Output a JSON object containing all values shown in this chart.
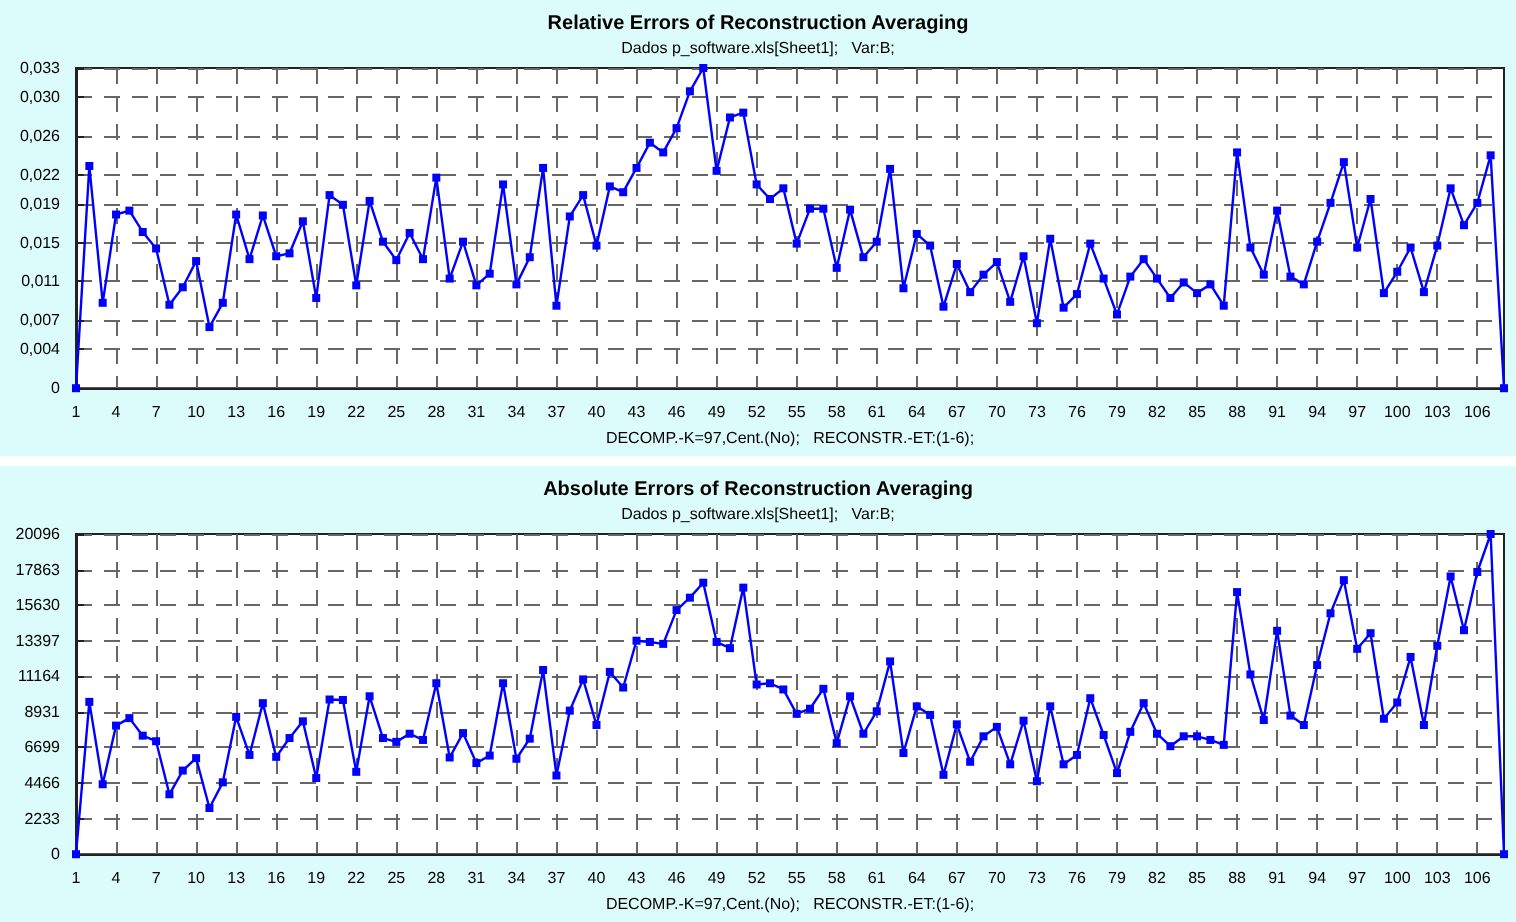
{
  "chart_data": [
    {
      "type": "line",
      "title": "Relative Errors of Reconstruction Averaging",
      "subtitle": "Dados p_software.xls[Sheet1];   Var:B;",
      "xlabel": "DECOMP.-K=97,Cent.(No);   RECONSTR.-ET:(1-6);",
      "categories": [
        "1",
        null,
        null,
        "4",
        null,
        null,
        "7",
        null,
        null,
        "10",
        null,
        null,
        "13",
        null,
        null,
        "16",
        null,
        null,
        "19",
        null,
        null,
        "22",
        null,
        null,
        "25",
        null,
        null,
        "28",
        null,
        null,
        "31",
        null,
        null,
        "34",
        null,
        null,
        "37",
        null,
        null,
        "40",
        null,
        null,
        "43",
        null,
        null,
        "46",
        null,
        null,
        "49",
        null,
        null,
        "52",
        null,
        null,
        "55",
        null,
        null,
        "58",
        null,
        null,
        "61",
        null,
        null,
        "64",
        null,
        null,
        "67",
        null,
        null,
        "70",
        null,
        null,
        "73",
        null,
        null,
        "76",
        null,
        null,
        "79",
        null,
        null,
        "82",
        null,
        null,
        "85",
        null,
        null,
        "88",
        null,
        null,
        "91",
        null,
        null,
        "94",
        null,
        null,
        "97",
        null,
        null,
        "100",
        null,
        null,
        "103",
        null,
        null,
        "106",
        null,
        null
      ],
      "series": [
        {
          "color": "#0000ff",
          "values": [
            0,
            0.0229,
            0.0088,
            0.0179,
            0.0183,
            0.0161,
            0.0144,
            0.0086,
            0.0104,
            0.0131,
            0.0063,
            0.0088,
            0.0179,
            0.0133,
            0.0178,
            0.0136,
            0.0139,
            0.0172,
            0.0093,
            0.0199,
            0.0189,
            0.0106,
            0.0193,
            0.0151,
            0.0132,
            0.016,
            0.0133,
            0.0217,
            0.0113,
            0.0151,
            0.0106,
            0.0118,
            0.021,
            0.0107,
            0.0135,
            0.0227,
            0.0085,
            0.0177,
            0.0199,
            0.0147,
            0.0208,
            0.0202,
            0.0227,
            0.0253,
            0.0243,
            0.0268,
            0.0306,
            0.033,
            0.0224,
            0.0279,
            0.0284,
            0.021,
            0.0195,
            0.0206,
            0.0149,
            0.0185,
            0.0185,
            0.0124,
            0.0184,
            0.0135,
            0.0151,
            0.0226,
            0.0103,
            0.0159,
            0.0147,
            0.0084,
            0.0128,
            0.0099,
            0.0117,
            0.013,
            0.0089,
            0.0136,
            0.0067,
            0.0154,
            0.0083,
            0.0097,
            0.0149,
            0.0113,
            0.0076,
            0.0115,
            0.0133,
            0.0113,
            0.0093,
            0.0109,
            0.0098,
            0.0107,
            0.0085,
            0.0243,
            0.0145,
            0.0117,
            0.0183,
            0.0115,
            0.0107,
            0.0151,
            0.0191,
            0.0233,
            0.0145,
            0.0195,
            0.0098,
            0.012,
            0.0145,
            0.0099,
            0.0147,
            0.0206,
            0.0168,
            0.0191,
            0.024,
            0
          ]
        }
      ],
      "ylim": [
        0,
        0.033
      ],
      "yticks": [
        0,
        {
          "value": 0.004,
          "label": "0,004"
        },
        {
          "value": 0.007,
          "label": "0,007"
        },
        {
          "value": 0.011,
          "label": "0,011"
        },
        {
          "value": 0.015,
          "label": "0,015"
        },
        {
          "value": 0.019,
          "label": "0,019"
        },
        {
          "value": 0.022,
          "label": "0,022"
        },
        {
          "value": 0.026,
          "label": "0,026"
        },
        {
          "value": 0.03,
          "label": "0,030"
        },
        {
          "value": 0.033,
          "label": "0,033"
        }
      ],
      "grid": true,
      "marker": "square",
      "line_style": "solid"
    },
    {
      "type": "line",
      "title": "Absolute Errors of Reconstruction Averaging",
      "subtitle": "Dados p_software.xls[Sheet1];   Var:B;",
      "xlabel": "DECOMP.-K=97,Cent.(No);   RECONSTR.-ET:(1-6);",
      "categories": [
        "1",
        null,
        null,
        "4",
        null,
        null,
        "7",
        null,
        null,
        "10",
        null,
        null,
        "13",
        null,
        null,
        "16",
        null,
        null,
        "19",
        null,
        null,
        "22",
        null,
        null,
        "25",
        null,
        null,
        "28",
        null,
        null,
        "31",
        null,
        null,
        "34",
        null,
        null,
        "37",
        null,
        null,
        "40",
        null,
        null,
        "43",
        null,
        null,
        "46",
        null,
        null,
        "49",
        null,
        null,
        "52",
        null,
        null,
        "55",
        null,
        null,
        "58",
        null,
        null,
        "61",
        null,
        null,
        "64",
        null,
        null,
        "67",
        null,
        null,
        "70",
        null,
        null,
        "73",
        null,
        null,
        "76",
        null,
        null,
        "79",
        null,
        null,
        "82",
        null,
        null,
        "85",
        null,
        null,
        "88",
        null,
        null,
        "91",
        null,
        null,
        "94",
        null,
        null,
        "97",
        null,
        null,
        "100",
        null,
        null,
        "103",
        null,
        null,
        "106",
        null,
        null
      ],
      "series": [
        {
          "color": "#0000ff",
          "values": [
            0,
            9560,
            4390,
            8070,
            8540,
            7440,
            7090,
            3760,
            5250,
            6030,
            2900,
            4510,
            8620,
            6230,
            9480,
            6110,
            7290,
            8340,
            4780,
            9710,
            9680,
            5170,
            9910,
            7290,
            7050,
            7560,
            7170,
            10730,
            6070,
            7600,
            5720,
            6190,
            10730,
            5990,
            7250,
            11560,
            4940,
            9010,
            10970,
            8110,
            11440,
            10460,
            13400,
            13320,
            13200,
            15320,
            16100,
            17040,
            13320,
            12930,
            16730,
            10650,
            10730,
            10340,
            8810,
            9130,
            10380,
            6970,
            9910,
            7560,
            8970,
            12100,
            6350,
            9280,
            8740,
            4980,
            8150,
            5800,
            7400,
            7990,
            5640,
            8380,
            4580,
            9280,
            5640,
            6230,
            9790,
            7480,
            5090,
            7680,
            9480,
            7560,
            6780,
            7400,
            7400,
            7170,
            6860,
            16450,
            11280,
            8420,
            14020,
            8700,
            8110,
            11870,
            15120,
            17200,
            12890,
            13870,
            8500,
            9520,
            12380,
            8110,
            13080,
            17430,
            14060,
            17710,
            20096,
            0
          ]
        }
      ],
      "ylim": [
        0,
        20096
      ],
      "yticks": [
        0,
        2233,
        4466,
        6699,
        8931,
        11164,
        13397,
        15630,
        17863,
        20096
      ],
      "grid": true,
      "marker": "square",
      "line_style": "solid"
    }
  ]
}
